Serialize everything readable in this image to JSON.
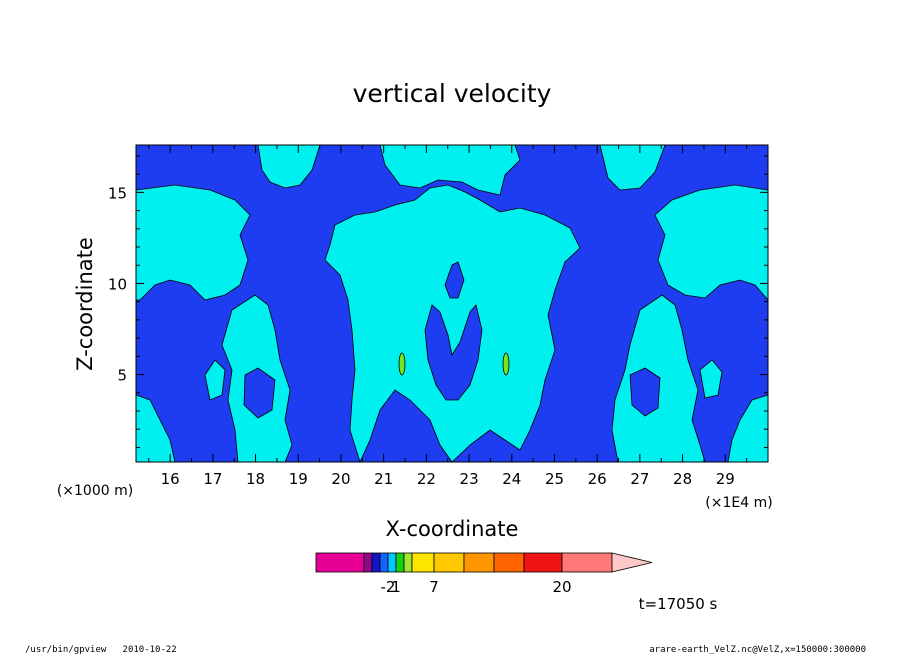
{
  "chart_data": {
    "type": "heatmap",
    "title": "vertical velocity",
    "xlabel": "X-coordinate",
    "ylabel": "Z-coordinate",
    "x_unit_label": "(×1E4 m)",
    "y_unit_label": "(×1000 m)",
    "xlim": [
      15.2,
      30.0
    ],
    "ylim": [
      0.2,
      17.6
    ],
    "x_ticks": [
      "16",
      "17",
      "18",
      "19",
      "20",
      "21",
      "22",
      "23",
      "24",
      "25",
      "26",
      "27",
      "28",
      "29"
    ],
    "y_ticks": [
      "5",
      "10",
      "15"
    ],
    "time_label": "t=17050 s",
    "colorbar": {
      "colors": [
        "#e60096",
        "#8b0a8b",
        "#1414c8",
        "#1464ff",
        "#00c8ff",
        "#14d214",
        "#a0e632",
        "#ffe600",
        "#ffc800",
        "#ff9600",
        "#ff6400",
        "#f01414",
        "#ff7878",
        "#ffc8c8"
      ],
      "tick_labels": [
        "-2",
        "1",
        "7",
        "20"
      ],
      "tick_boundary_index": [
        4,
        5,
        8,
        12
      ]
    },
    "fields": {
      "background": "#1e3cf0",
      "positive": "#00f0f0",
      "strong": "#78e61e"
    },
    "footer_left": "/usr/bin/gpview   2010-10-22",
    "footer_right": "arare-earth_VelZ.nc@VelZ,x=150000:300000"
  }
}
